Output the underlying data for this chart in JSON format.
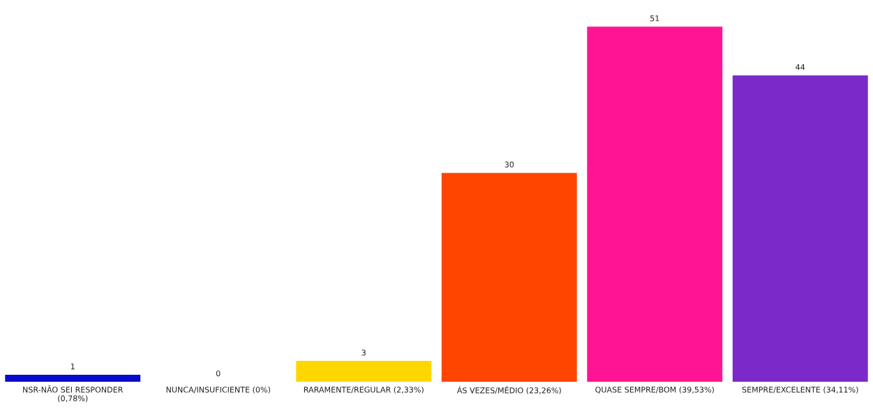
{
  "chart_data": {
    "type": "bar",
    "categories": [
      "NSR-NÃO SEI RESPONDER\n(0,78%)",
      "NUNCA/INSUFICIENTE (0%)",
      "RARAMENTE/REGULAR (2,33%)",
      "ÁS VEZES/MÉDIO (23,26%)",
      "QUASE SEMPRE/BOM (39,53%)",
      "SEMPRE/EXCELENTE (34,11%)"
    ],
    "values": [
      1,
      0,
      3,
      30,
      51,
      44
    ],
    "colors": [
      "#0a0acd",
      null,
      "#ffd700",
      "#ff4500",
      "#ff1493",
      "#7b2ac9"
    ],
    "data_labels": true
  }
}
